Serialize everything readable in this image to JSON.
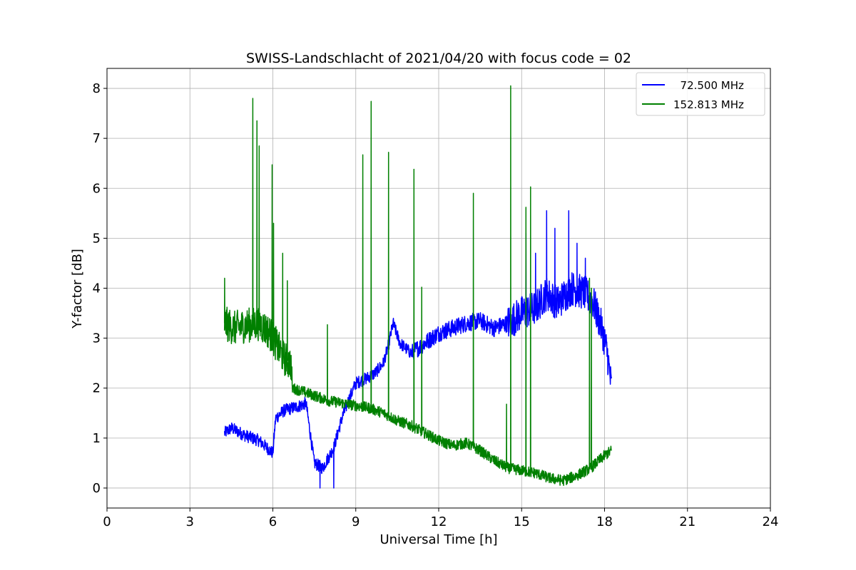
{
  "chart_data": {
    "type": "line",
    "title": "SWISS-Landschlacht of 2021/04/20 with focus code = 02",
    "xlabel": "Universal Time [h]",
    "ylabel": "Y-factor [dB]",
    "xlim": [
      0,
      24
    ],
    "ylim": [
      -0.4,
      8.4
    ],
    "xticks": [
      0,
      3,
      6,
      9,
      12,
      15,
      18,
      21,
      24
    ],
    "yticks": [
      0,
      1,
      2,
      3,
      4,
      5,
      6,
      7,
      8
    ],
    "grid": true,
    "legend_position": "top-right",
    "series": [
      {
        "name": "  72.500 MHz",
        "color": "#0000ff",
        "base": [
          [
            4.25,
            1.1
          ],
          [
            4.5,
            1.2
          ],
          [
            5.0,
            1.05
          ],
          [
            5.5,
            0.95
          ],
          [
            5.8,
            0.8
          ],
          [
            6.0,
            0.7
          ],
          [
            6.1,
            1.4
          ],
          [
            6.4,
            1.55
          ],
          [
            6.7,
            1.6
          ],
          [
            7.0,
            1.65
          ],
          [
            7.2,
            1.7
          ],
          [
            7.3,
            1.3
          ],
          [
            7.5,
            0.5
          ],
          [
            7.8,
            0.4
          ],
          [
            8.2,
            0.8
          ],
          [
            8.5,
            1.4
          ],
          [
            8.7,
            1.7
          ],
          [
            9.0,
            2.1
          ],
          [
            9.4,
            2.2
          ],
          [
            9.7,
            2.3
          ],
          [
            10.0,
            2.5
          ],
          [
            10.2,
            2.9
          ],
          [
            10.35,
            3.3
          ],
          [
            10.6,
            2.9
          ],
          [
            11.0,
            2.7
          ],
          [
            11.5,
            2.9
          ],
          [
            12.0,
            3.1
          ],
          [
            12.5,
            3.2
          ],
          [
            13.0,
            3.3
          ],
          [
            13.5,
            3.35
          ],
          [
            14.0,
            3.2
          ],
          [
            14.5,
            3.3
          ],
          [
            15.0,
            3.5
          ],
          [
            15.5,
            3.6
          ],
          [
            15.9,
            3.9
          ],
          [
            16.3,
            3.7
          ],
          [
            16.8,
            4.0
          ],
          [
            17.3,
            3.9
          ],
          [
            17.6,
            3.7
          ],
          [
            17.9,
            3.2
          ],
          [
            18.1,
            2.7
          ],
          [
            18.25,
            2.0
          ]
        ],
        "spikes": [
          [
            8.2,
            0.0
          ],
          [
            7.7,
            0.0
          ],
          [
            15.15,
            5.1
          ],
          [
            15.9,
            5.55
          ],
          [
            16.7,
            5.55
          ],
          [
            17.3,
            4.6
          ],
          [
            15.5,
            4.7
          ],
          [
            16.2,
            5.2
          ],
          [
            17.0,
            4.9
          ]
        ]
      },
      {
        "name": "152.813 MHz",
        "color": "#008000",
        "base": [
          [
            4.25,
            3.3
          ],
          [
            4.6,
            3.2
          ],
          [
            5.0,
            3.25
          ],
          [
            5.5,
            3.3
          ],
          [
            5.9,
            3.1
          ],
          [
            6.1,
            2.9
          ],
          [
            6.4,
            2.6
          ],
          [
            6.65,
            2.5
          ],
          [
            6.7,
            2.0
          ],
          [
            7.0,
            1.95
          ],
          [
            7.5,
            1.85
          ],
          [
            8.0,
            1.75
          ],
          [
            8.5,
            1.7
          ],
          [
            9.0,
            1.65
          ],
          [
            9.5,
            1.6
          ],
          [
            10.0,
            1.5
          ],
          [
            10.5,
            1.35
          ],
          [
            11.0,
            1.25
          ],
          [
            11.5,
            1.1
          ],
          [
            12.0,
            0.95
          ],
          [
            12.5,
            0.85
          ],
          [
            13.0,
            0.9
          ],
          [
            13.5,
            0.75
          ],
          [
            14.0,
            0.55
          ],
          [
            14.5,
            0.4
          ],
          [
            15.0,
            0.35
          ],
          [
            15.5,
            0.3
          ],
          [
            16.0,
            0.2
          ],
          [
            16.5,
            0.15
          ],
          [
            17.0,
            0.25
          ],
          [
            17.5,
            0.4
          ],
          [
            17.8,
            0.55
          ],
          [
            18.0,
            0.65
          ],
          [
            18.25,
            0.75
          ]
        ],
        "spikes": [
          [
            4.25,
            4.2
          ],
          [
            5.27,
            7.8
          ],
          [
            5.42,
            7.35
          ],
          [
            5.5,
            6.85
          ],
          [
            5.97,
            6.47
          ],
          [
            6.02,
            5.3
          ],
          [
            6.35,
            4.7
          ],
          [
            6.52,
            4.15
          ],
          [
            7.97,
            3.27
          ],
          [
            9.25,
            6.67
          ],
          [
            9.55,
            7.74
          ],
          [
            10.18,
            6.72
          ],
          [
            11.1,
            6.38
          ],
          [
            11.38,
            4.02
          ],
          [
            13.25,
            5.9
          ],
          [
            14.6,
            8.05
          ],
          [
            14.45,
            1.68
          ],
          [
            15.15,
            5.62
          ],
          [
            15.32,
            6.03
          ],
          [
            17.45,
            4.2
          ],
          [
            17.52,
            4.0
          ]
        ]
      }
    ]
  }
}
